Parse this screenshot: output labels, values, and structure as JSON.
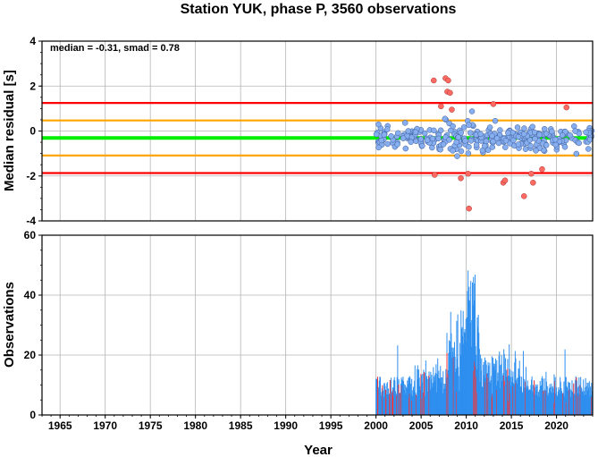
{
  "chart_data": [
    {
      "type": "scatter",
      "title": "Station YUK, phase P, 3560 observations",
      "annotation": "median = -0.31, smad = 0.78",
      "ylabel": "Median residual [s]",
      "xlim": [
        1963,
        2024
      ],
      "ylim": [
        -4,
        4
      ],
      "yticks": [
        "4",
        "2",
        "0",
        "-2",
        "-4"
      ],
      "grid": true,
      "reference_lines": [
        {
          "value": 1.25,
          "color": "#ff0000"
        },
        {
          "value": 0.47,
          "color": "#ffa500"
        },
        {
          "value": -0.31,
          "color": "#00ee00"
        },
        {
          "value": -1.09,
          "color": "#ffa500"
        },
        {
          "value": -1.87,
          "color": "#ff0000"
        }
      ],
      "colors": {
        "normal": "#87aeef",
        "outlier": "#ff6b62"
      }
    },
    {
      "type": "bar",
      "xlabel": "Year",
      "ylabel": "Observations",
      "xlim": [
        1963,
        2024
      ],
      "ylim": [
        0,
        60
      ],
      "xticks": [
        "1965",
        "1970",
        "1975",
        "1980",
        "1985",
        "1990",
        "1995",
        "2000",
        "2005",
        "2010",
        "2015",
        "2020"
      ],
      "yticks": [
        "60",
        "40",
        "20",
        "0"
      ],
      "grid": true,
      "colors": {
        "bar": "#2e8fef",
        "outlier_bar": "#ff3030"
      }
    }
  ]
}
